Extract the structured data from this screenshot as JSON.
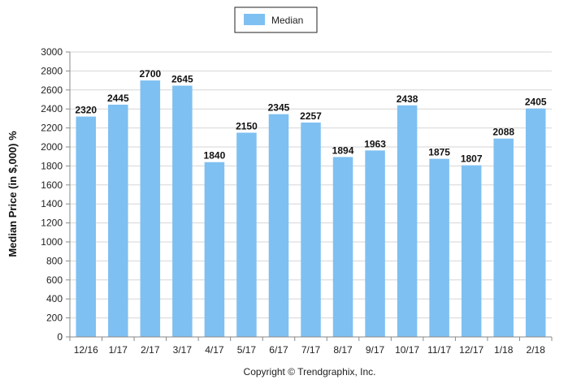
{
  "chart_data": {
    "type": "bar",
    "categories": [
      "12/16",
      "1/17",
      "2/17",
      "3/17",
      "4/17",
      "5/17",
      "6/17",
      "7/17",
      "8/17",
      "9/17",
      "10/17",
      "11/17",
      "12/17",
      "1/18",
      "2/18"
    ],
    "series": [
      {
        "name": "Median",
        "values": [
          2320,
          2445,
          2700,
          2645,
          1840,
          2150,
          2345,
          2257,
          1894,
          1963,
          2438,
          1875,
          1807,
          2088,
          2405
        ]
      }
    ],
    "title": "",
    "xlabel": "",
    "ylabel": "Median Price (in $,000) %",
    "ylim": [
      0,
      3000
    ],
    "yticks": [
      0,
      200,
      400,
      600,
      800,
      1000,
      1200,
      1400,
      1600,
      1800,
      2000,
      2200,
      2400,
      2600,
      2800,
      3000
    ],
    "grid": true,
    "legend": "top-center",
    "bar_color": "#7ec0f2",
    "data_labels": true
  },
  "footer": {
    "copyright": "Copyright © Trendgraphix, Inc."
  }
}
